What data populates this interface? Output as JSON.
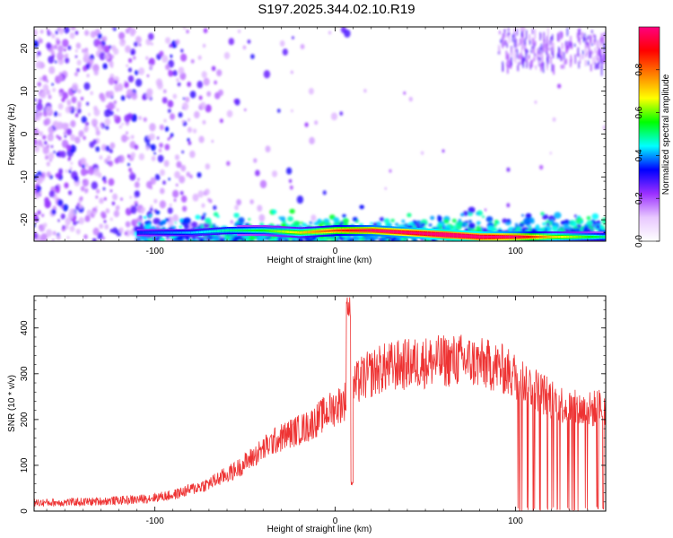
{
  "title": "S197.2025.344.02.10.R19",
  "chart_data": [
    {
      "type": "heatmap",
      "xlabel": "Height of straight line (km)",
      "ylabel": "Frequency (Hz)",
      "xlim": [
        -167,
        150
      ],
      "ylim": [
        -25,
        25
      ],
      "xticks": [
        -100,
        0,
        100
      ],
      "yticks": [
        -20,
        -10,
        0,
        10,
        20
      ],
      "colorbar": {
        "label": "Normalized spectral amplitude",
        "range": [
          0,
          1
        ],
        "ticks": [
          "0.0",
          "0.2",
          "0.4",
          "0.6",
          "0.8"
        ],
        "colors": [
          "#ffffff",
          "#e8c8ff",
          "#9b30ff",
          "#0000ff",
          "#00ffff",
          "#00ff00",
          "#ffff00",
          "#ff8000",
          "#ff0000",
          "#ff0080"
        ]
      },
      "ridge": {
        "x": [
          -110,
          -80,
          -60,
          -40,
          -20,
          0,
          20,
          40,
          60,
          80,
          100,
          120,
          150
        ],
        "y": [
          -23,
          -23,
          -22.5,
          -22.5,
          -23,
          -22.5,
          -22.5,
          -23,
          -23.5,
          -24,
          -24,
          -24,
          -24
        ],
        "amplitude": [
          0.25,
          0.3,
          0.35,
          0.4,
          0.5,
          0.6,
          0.7,
          0.75,
          0.85,
          0.8,
          0.7,
          0.5,
          0.35
        ]
      }
    },
    {
      "type": "line",
      "xlabel": "Height of straight line (km)",
      "ylabel": "SNR (10 * v/v)",
      "xlim": [
        -167,
        150
      ],
      "ylim": [
        0,
        470
      ],
      "xticks": [
        -100,
        0,
        100
      ],
      "yticks": [
        0,
        100,
        200,
        300,
        400
      ],
      "series": [
        {
          "color": "#ee3333",
          "envelope_x": [
            -167,
            -140,
            -110,
            -90,
            -70,
            -55,
            -45,
            -35,
            -25,
            -15,
            -5,
            5,
            10,
            15,
            25,
            35,
            50,
            70,
            90,
            100,
            110,
            120,
            130,
            140,
            150
          ],
          "envelope_y": [
            18,
            20,
            25,
            35,
            60,
            90,
            120,
            150,
            170,
            185,
            215,
            240,
            270,
            290,
            310,
            318,
            325,
            330,
            315,
            295,
            270,
            245,
            225,
            220,
            230
          ]
        }
      ]
    }
  ]
}
